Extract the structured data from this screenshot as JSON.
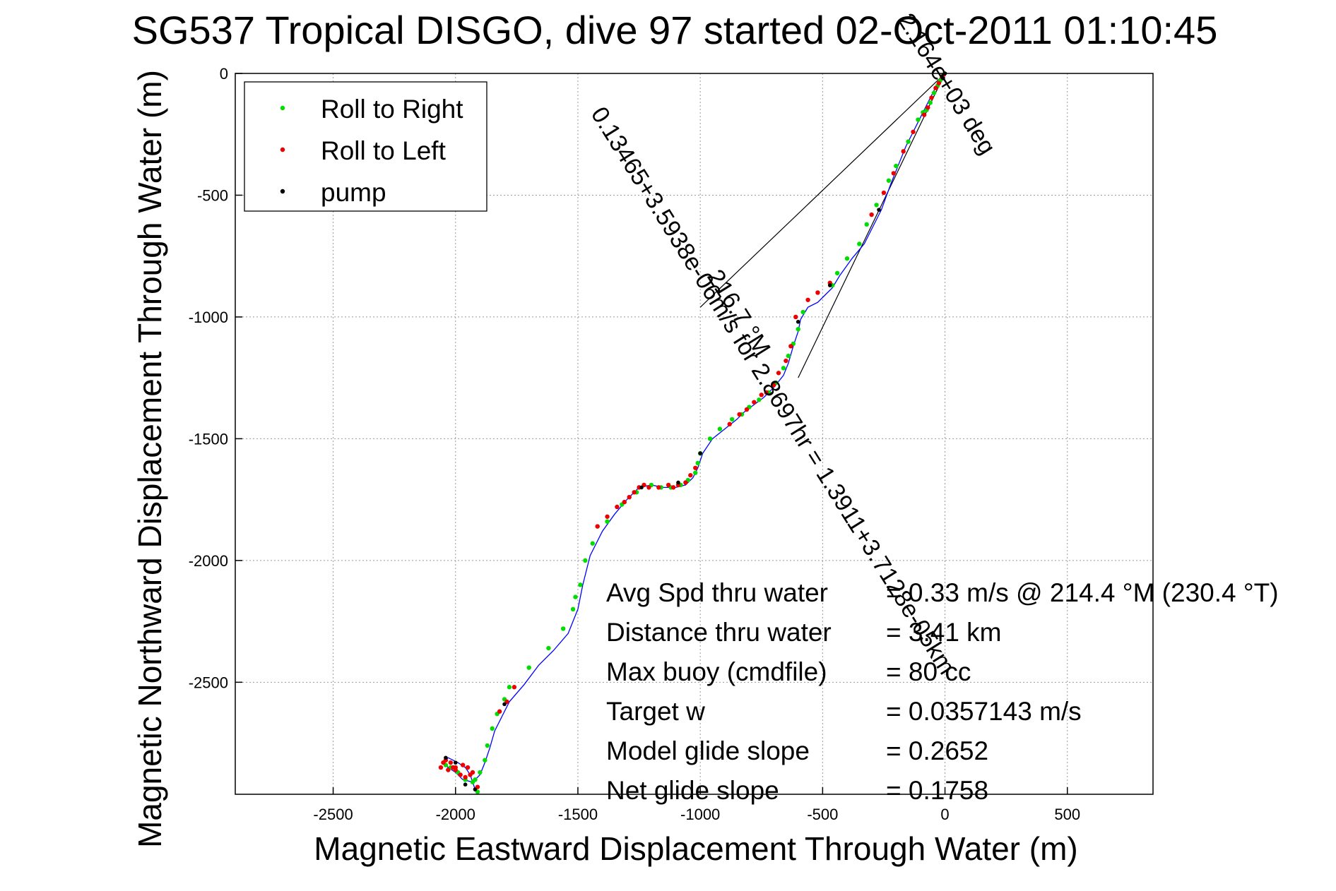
{
  "chart_data": {
    "type": "scatter",
    "title": "SG537 Tropical DISGO, dive 97 started 02-Oct-2011 01:10:45",
    "xlabel": "Magnetic Eastward Displacement Through Water (m)",
    "ylabel": "Magnetic Northward Displacement Through Water (m)",
    "xlim": [
      -2900,
      850
    ],
    "ylim": [
      -2960,
      0
    ],
    "xticks": [
      -2500,
      -2000,
      -1500,
      -1000,
      -500,
      0,
      500
    ],
    "yticks": [
      0,
      -500,
      -1000,
      -1500,
      -2000,
      -2500
    ],
    "xticklabels": [
      "-2500",
      "-2000",
      "-1500",
      "-1000",
      "-500",
      "0",
      "500"
    ],
    "yticklabels": [
      "0",
      "-500",
      "-1000",
      "-1500",
      "-2000",
      "-2500"
    ],
    "grid": true,
    "legend_position": "top-left",
    "legend": [
      {
        "label": "Roll to Right",
        "color": "#00dd00"
      },
      {
        "label": "Roll to Left",
        "color": "#ee0000"
      },
      {
        "label": "pump",
        "color": "#000000"
      }
    ],
    "track": {
      "color": "#0000ff",
      "points": [
        [
          0,
          0
        ],
        [
          -30,
          -40
        ],
        [
          -60,
          -100
        ],
        [
          -100,
          -180
        ],
        [
          -160,
          -300
        ],
        [
          -220,
          -450
        ],
        [
          -260,
          -560
        ],
        [
          -290,
          -620
        ],
        [
          -330,
          -700
        ],
        [
          -380,
          -760
        ],
        [
          -430,
          -830
        ],
        [
          -460,
          -880
        ],
        [
          -490,
          -910
        ],
        [
          -520,
          -940
        ],
        [
          -560,
          -960
        ],
        [
          -590,
          -1010
        ],
        [
          -600,
          -1060
        ],
        [
          -620,
          -1120
        ],
        [
          -640,
          -1190
        ],
        [
          -660,
          -1240
        ],
        [
          -700,
          -1290
        ],
        [
          -740,
          -1330
        ],
        [
          -780,
          -1360
        ],
        [
          -820,
          -1390
        ],
        [
          -850,
          -1420
        ],
        [
          -900,
          -1460
        ],
        [
          -950,
          -1500
        ],
        [
          -990,
          -1560
        ],
        [
          -1010,
          -1620
        ],
        [
          -1030,
          -1660
        ],
        [
          -1060,
          -1690
        ],
        [
          -1100,
          -1700
        ],
        [
          -1150,
          -1700
        ],
        [
          -1200,
          -1690
        ],
        [
          -1250,
          -1700
        ],
        [
          -1300,
          -1750
        ],
        [
          -1350,
          -1810
        ],
        [
          -1400,
          -1880
        ],
        [
          -1450,
          -1980
        ],
        [
          -1480,
          -2100
        ],
        [
          -1500,
          -2200
        ],
        [
          -1540,
          -2300
        ],
        [
          -1600,
          -2370
        ],
        [
          -1660,
          -2430
        ],
        [
          -1720,
          -2510
        ],
        [
          -1780,
          -2580
        ],
        [
          -1810,
          -2640
        ],
        [
          -1840,
          -2700
        ],
        [
          -1860,
          -2770
        ],
        [
          -1880,
          -2830
        ],
        [
          -1900,
          -2880
        ],
        [
          -1930,
          -2910
        ],
        [
          -1970,
          -2900
        ],
        [
          -2000,
          -2870
        ],
        [
          -2030,
          -2850
        ],
        [
          -2050,
          -2830
        ],
        [
          -2030,
          -2810
        ],
        [
          -1990,
          -2830
        ],
        [
          -1960,
          -2850
        ],
        [
          -1940,
          -2880
        ],
        [
          -1920,
          -2940
        ],
        [
          -1910,
          -2960
        ]
      ]
    },
    "fit_lines": [
      {
        "from": [
          0,
          0
        ],
        "to": [
          -1000,
          -960
        ]
      },
      {
        "from": [
          0,
          0
        ],
        "to": [
          -600,
          -1250
        ]
      }
    ],
    "rotated_annotations": [
      {
        "text": "2.164e+03 deg",
        "x": -20,
        "y": -60,
        "rotation": 58
      },
      {
        "text": "0.13465+3.5938e-06m/s for 2.8697hr = 1.3911+3.7128e-05km",
        "x": -730,
        "y": -1320,
        "rotation": 58
      },
      {
        "text": "216.7 °M",
        "x": -870,
        "y": -1000,
        "rotation": 58
      }
    ],
    "roll_right_x": [
      -10,
      -20,
      -30,
      -45,
      -60,
      -75,
      -90,
      -110,
      -150,
      -200,
      -230,
      -280,
      -320,
      -350,
      -400,
      -440,
      -460,
      -580,
      -600,
      -620,
      -640,
      -660,
      -690,
      -720,
      -760,
      -800,
      -830,
      -870,
      -920,
      -960,
      -1000,
      -1010,
      -1020,
      -1050,
      -1080,
      -1120,
      -1160,
      -1200,
      -1260,
      -1320,
      -1380,
      -1440,
      -1470,
      -1490,
      -1510,
      -1520,
      -1560,
      -1620,
      -1700,
      -1780,
      -1800,
      -1830,
      -1850,
      -1870,
      -1880,
      -1900,
      -1920,
      -1960,
      -1990,
      -2020,
      -2040,
      -1930,
      -1910
    ],
    "roll_right_y": [
      -10,
      -30,
      -50,
      -80,
      -120,
      -150,
      -160,
      -190,
      -280,
      -380,
      -440,
      -540,
      -620,
      -700,
      -760,
      -820,
      -870,
      -980,
      -1050,
      -1110,
      -1160,
      -1210,
      -1270,
      -1310,
      -1340,
      -1370,
      -1400,
      -1420,
      -1460,
      -1500,
      -1560,
      -1600,
      -1640,
      -1670,
      -1690,
      -1700,
      -1700,
      -1690,
      -1720,
      -1770,
      -1840,
      -1930,
      -2000,
      -2100,
      -2150,
      -2200,
      -2280,
      -2360,
      -2440,
      -2520,
      -2570,
      -2630,
      -2690,
      -2760,
      -2820,
      -2870,
      -2900,
      -2900,
      -2870,
      -2850,
      -2840,
      -2910,
      -2950
    ],
    "roll_left_x": [
      -5,
      -12,
      -25,
      -38,
      -55,
      -70,
      -85,
      -130,
      -170,
      -210,
      -250,
      -300,
      -470,
      -520,
      -560,
      -610,
      -630,
      -650,
      -680,
      -700,
      -730,
      -750,
      -780,
      -810,
      -840,
      -880,
      -1020,
      -1040,
      -1060,
      -1090,
      -1110,
      -1130,
      -1170,
      -1210,
      -1230,
      -1250,
      -1270,
      -1290,
      -1310,
      -1340,
      -1380,
      -1420,
      -1760,
      -1790,
      -1820,
      -1940,
      -1960,
      -1980,
      -2000,
      -2010,
      -2020,
      -2040,
      -2050,
      -2060,
      -2030,
      -2000,
      -1970,
      -1950,
      -1930,
      -1910
    ],
    "roll_left_y": [
      -5,
      -15,
      -40,
      -60,
      -100,
      -140,
      -170,
      -240,
      -320,
      -410,
      -490,
      -580,
      -860,
      -900,
      -930,
      -1000,
      -1120,
      -1180,
      -1230,
      -1280,
      -1310,
      -1320,
      -1350,
      -1380,
      -1400,
      -1440,
      -1620,
      -1650,
      -1680,
      -1690,
      -1700,
      -1690,
      -1700,
      -1700,
      -1690,
      -1700,
      -1720,
      -1740,
      -1760,
      -1780,
      -1820,
      -1860,
      -2520,
      -2580,
      -2620,
      -2880,
      -2890,
      -2880,
      -2860,
      -2850,
      -2830,
      -2820,
      -2830,
      -2850,
      -2860,
      -2850,
      -2840,
      -2850,
      -2870,
      -2930
    ],
    "pump_x": [
      0,
      -8,
      -270,
      -470,
      -600,
      -1000,
      -1090,
      -1240,
      -1800,
      -1920,
      -1960,
      -2000,
      -2040
    ],
    "pump_y": [
      0,
      -20,
      -560,
      -870,
      -1020,
      -1560,
      -1680,
      -1700,
      -2590,
      -2940,
      -2920,
      -2830,
      -2810
    ],
    "stats": [
      {
        "label": "Avg Spd thru water",
        "value": "=  0.33 m/s @ 214.4 °M (230.4 °T)"
      },
      {
        "label": "Distance thru water",
        "value": "=  3.41 km"
      },
      {
        "label": "Max buoy (cmdfile)",
        "value": "= 80 cc"
      },
      {
        "label": "Target w",
        "value": "= 0.0357143 m/s"
      },
      {
        "label": "Model glide slope",
        "value": "= 0.2652"
      },
      {
        "label": "Net glide slope",
        "value": "= 0.1758"
      }
    ]
  }
}
